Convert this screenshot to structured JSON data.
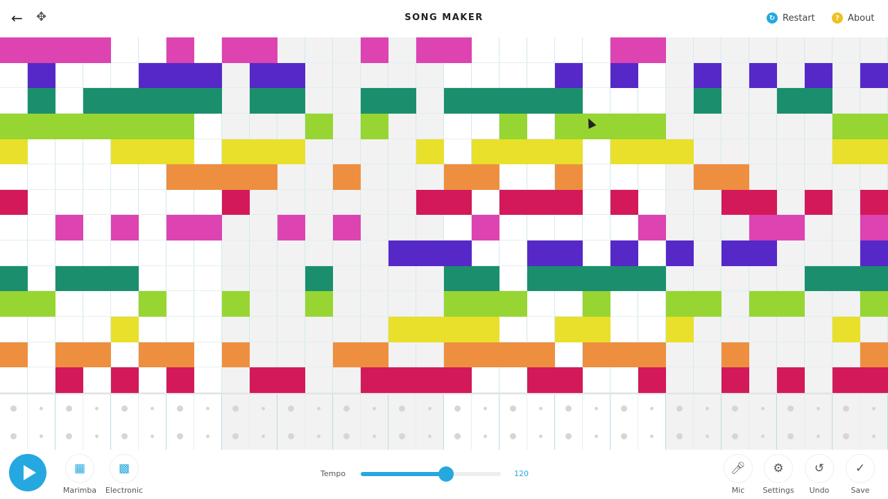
{
  "header": {
    "title": "SONG MAKER",
    "restart_label": "Restart",
    "about_label": "About",
    "back_icon": "arrow-left-icon",
    "move_icon": "move-arrows-icon"
  },
  "colors": {
    "accent": "#25a8e0",
    "restart_icon": "#25a8e0",
    "about_icon": "#f0c020",
    "grey_measure": "#f2f2f2"
  },
  "grid": {
    "columns": 32,
    "row_colors": [
      "#dd43b1",
      "#5628c8",
      "#1b8f6d",
      "#97d532",
      "#e8e02a",
      "#ee8f40",
      "#d3195a",
      "#dd43b1",
      "#5628c8",
      "#1b8f6d",
      "#97d532",
      "#e8e02a",
      "#ee8f40",
      "#d3195a"
    ],
    "notes": [
      [
        0,
        1,
        2,
        3,
        6,
        8,
        9,
        13,
        15,
        16,
        22,
        23
      ],
      [
        1,
        5,
        6,
        7,
        9,
        10,
        20,
        22,
        25,
        27,
        29,
        31
      ],
      [
        1,
        3,
        4,
        5,
        6,
        7,
        9,
        10,
        13,
        14,
        16,
        17,
        18,
        19,
        20,
        25,
        28,
        29
      ],
      [
        0,
        1,
        2,
        3,
        4,
        5,
        6,
        11,
        13,
        18,
        20,
        21,
        22,
        23,
        30,
        31
      ],
      [
        0,
        4,
        5,
        6,
        8,
        9,
        10,
        15,
        17,
        18,
        19,
        20,
        22,
        23,
        24,
        30,
        31
      ],
      [
        6,
        7,
        8,
        9,
        12,
        16,
        17,
        20,
        25,
        26
      ],
      [
        0,
        8,
        15,
        16,
        18,
        19,
        20,
        22,
        26,
        27,
        29,
        31
      ],
      [
        2,
        4,
        6,
        7,
        10,
        12,
        17,
        23,
        27,
        28,
        31
      ],
      [
        14,
        15,
        16,
        19,
        20,
        22,
        24,
        26,
        27,
        31
      ],
      [
        0,
        2,
        3,
        4,
        11,
        16,
        17,
        19,
        20,
        21,
        22,
        23,
        29,
        30,
        31
      ],
      [
        0,
        1,
        5,
        8,
        11,
        16,
        17,
        18,
        21,
        24,
        25,
        27,
        28,
        31
      ],
      [
        4,
        14,
        15,
        16,
        17,
        20,
        21,
        24,
        30
      ],
      [
        0,
        2,
        3,
        5,
        6,
        8,
        12,
        13,
        16,
        17,
        18,
        19,
        21,
        22,
        23,
        26,
        31
      ],
      [
        2,
        4,
        6,
        9,
        10,
        13,
        14,
        15,
        16,
        19,
        20,
        23,
        26,
        28,
        30,
        31
      ]
    ]
  },
  "drums": {
    "rows": 2,
    "active": []
  },
  "bottom": {
    "play_icon": "play-icon",
    "instrument_label": "Marimba",
    "rhythm_label": "Electronic",
    "tempo_label": "Tempo",
    "tempo_value": "120",
    "tempo_fraction": 0.61,
    "mic_label": "Mic",
    "settings_label": "Settings",
    "undo_label": "Undo",
    "save_label": "Save"
  }
}
